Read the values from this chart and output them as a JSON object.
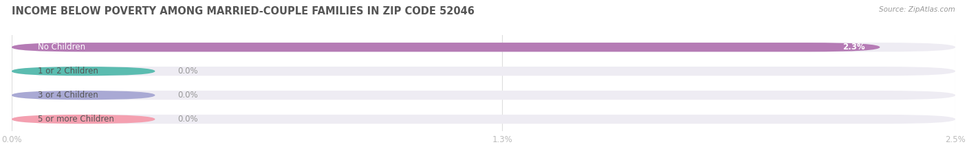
{
  "title": "INCOME BELOW POVERTY AMONG MARRIED-COUPLE FAMILIES IN ZIP CODE 52046",
  "source": "Source: ZipAtlas.com",
  "categories": [
    "No Children",
    "1 or 2 Children",
    "3 or 4 Children",
    "5 or more Children"
  ],
  "values": [
    2.3,
    0.0,
    0.0,
    0.0
  ],
  "bar_colors": [
    "#b57bb5",
    "#5bbcb0",
    "#a9a9d4",
    "#f4a0b0"
  ],
  "bg_track_color": "#eeecf3",
  "label_values": [
    "2.3%",
    "0.0%",
    "0.0%",
    "0.0%"
  ],
  "xlim": [
    0,
    2.5
  ],
  "xticks": [
    0.0,
    1.3,
    2.5
  ],
  "xtick_labels": [
    "0.0%",
    "1.3%",
    "2.5%"
  ],
  "title_fontsize": 10.5,
  "label_fontsize": 8.5,
  "value_fontsize": 8.5,
  "bar_height": 0.38,
  "background_color": "#ffffff",
  "title_color": "#555555",
  "source_color": "#999999",
  "tick_color": "#bbbbbb",
  "value_label_color_inside": "#ffffff",
  "value_label_color_outside": "#999999",
  "label_color": "#555555"
}
